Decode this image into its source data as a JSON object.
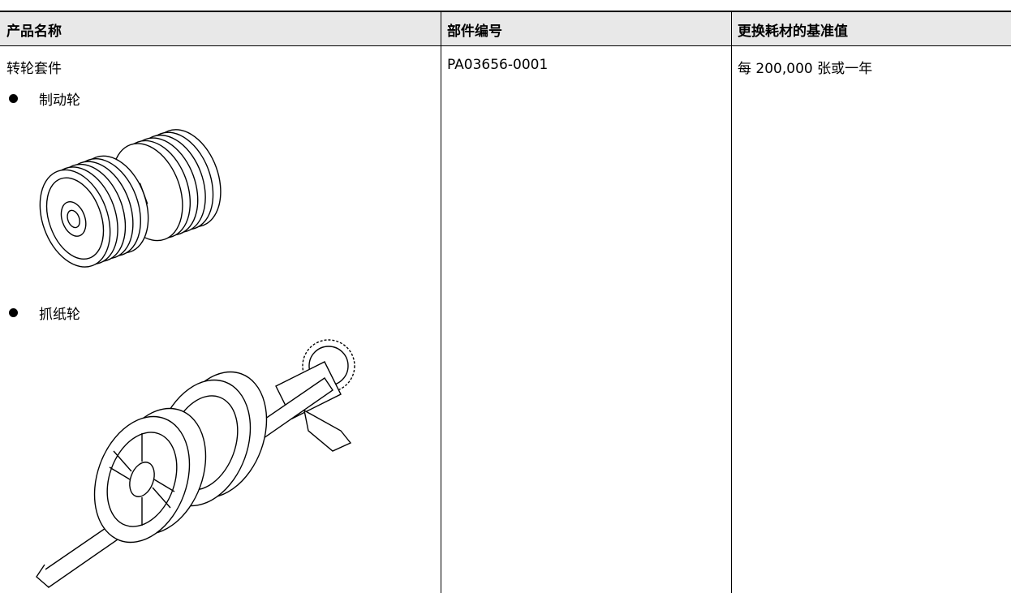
{
  "table": {
    "headers": [
      "产品名称",
      "部件编号",
      "更换耗材的基准值"
    ],
    "rows": [
      [
        "转轮套件",
        "PA03656-0001",
        "每 200,000 张或一年"
      ]
    ],
    "parts": [
      "制动轮",
      "抓纸轮"
    ]
  }
}
